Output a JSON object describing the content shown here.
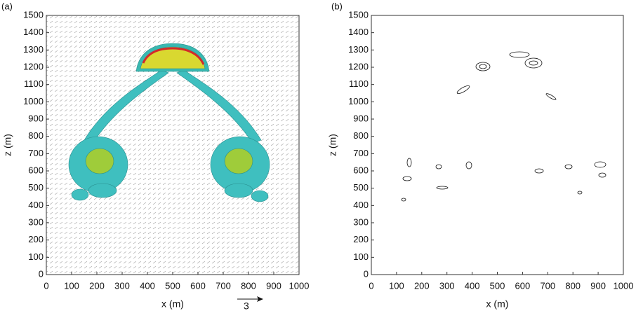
{
  "chart_data": [
    {
      "type": "contour",
      "panel_label": "(a)",
      "xlabel": "x (m)",
      "ylabel": "z (m)",
      "xlim": [
        0,
        1000
      ],
      "ylim": [
        0,
        1500
      ],
      "xticks": [
        0,
        100,
        200,
        300,
        400,
        500,
        600,
        700,
        800,
        900,
        1000
      ],
      "yticks": [
        0,
        100,
        200,
        300,
        400,
        500,
        600,
        700,
        800,
        900,
        1000,
        1100,
        1200,
        1300,
        1400,
        1500
      ],
      "reference_vector": 3
    },
    {
      "type": "contour",
      "panel_label": "(b)",
      "xlabel": "x (m)",
      "ylabel": "z (m)",
      "xlim": [
        0,
        1000
      ],
      "ylim": [
        0,
        1500
      ],
      "xticks": [
        0,
        100,
        200,
        300,
        400,
        500,
        600,
        700,
        800,
        900,
        1000
      ],
      "yticks": [
        0,
        100,
        200,
        300,
        400,
        500,
        600,
        700,
        800,
        900,
        1000,
        1100,
        1200,
        1300,
        1400,
        1500
      ]
    }
  ]
}
